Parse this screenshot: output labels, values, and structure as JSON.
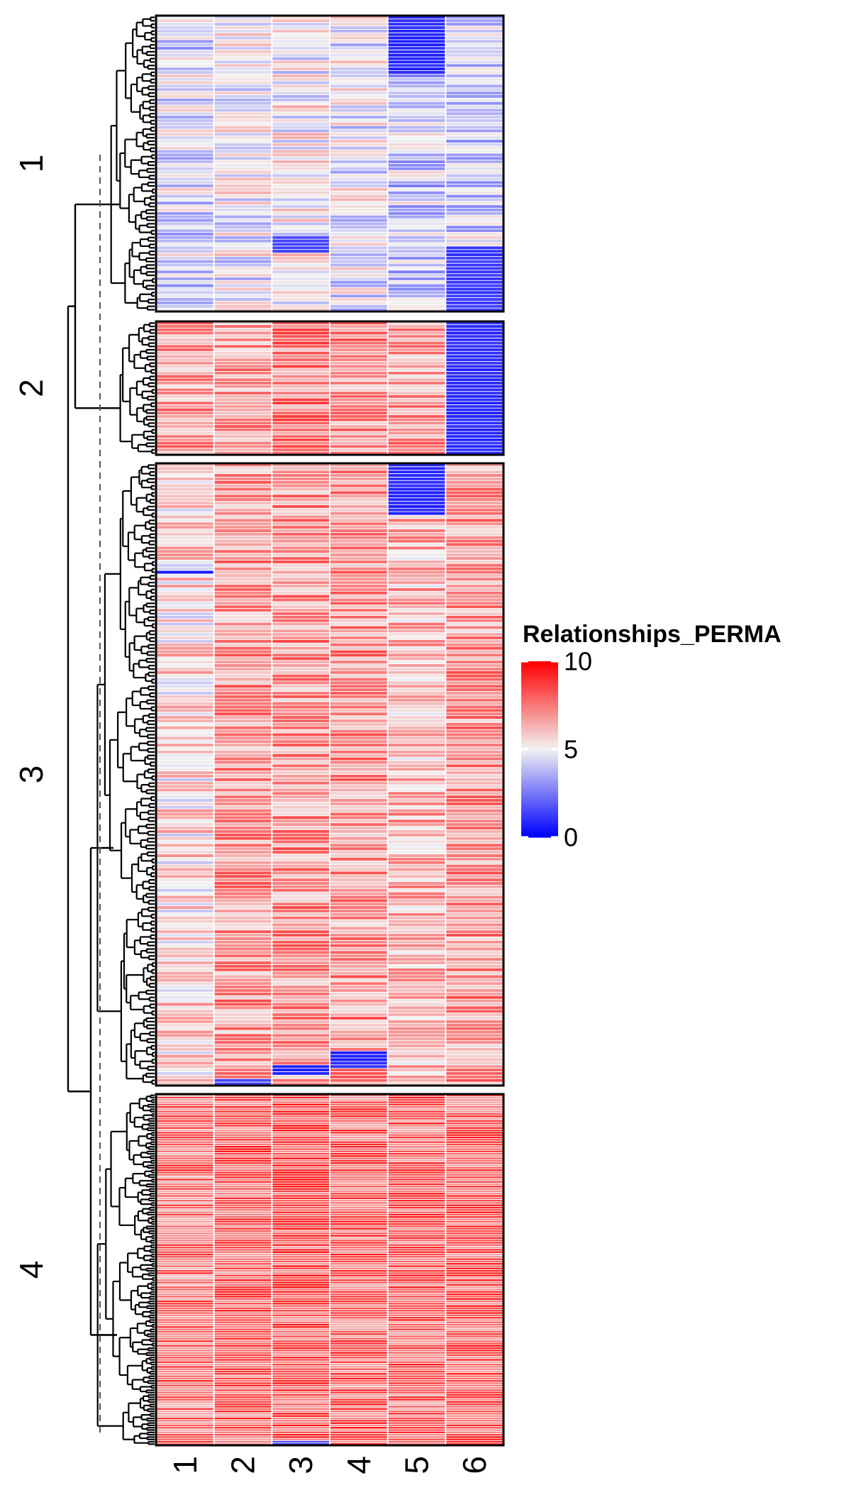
{
  "chart_data": {
    "type": "heatmap",
    "title": "",
    "columns": [
      "1",
      "2",
      "3",
      "4",
      "5",
      "6"
    ],
    "row_clusters": [
      {
        "label": "1",
        "rows": 86,
        "column_means": [
          4.4,
          4.8,
          5.1,
          4.7,
          4.1,
          4.3
        ],
        "low_blocks": [
          {
            "column": "5",
            "row_from": 0.0,
            "row_to": 0.2,
            "value": 0.5
          },
          {
            "column": "6",
            "row_from": 0.78,
            "row_to": 1.0,
            "value": 0.8
          },
          {
            "column": "3",
            "row_from": 0.75,
            "row_to": 0.8,
            "value": 1.0
          },
          {
            "column": "4",
            "row_from": 0.6,
            "row_to": 0.61,
            "value": 0.5
          }
        ]
      },
      {
        "label": "2",
        "rows": 40,
        "column_means": [
          6.8,
          6.9,
          7.4,
          7.1,
          6.8,
          0.6
        ],
        "low_blocks": [
          {
            "column": "6",
            "row_from": 0.0,
            "row_to": 1.0,
            "value": 0.6
          }
        ]
      },
      {
        "label": "3",
        "rows": 180,
        "column_means": [
          5.6,
          6.9,
          7.0,
          6.9,
          6.3,
          6.9
        ],
        "low_blocks": [
          {
            "column": "5",
            "row_from": 0.0,
            "row_to": 0.085,
            "value": 0.5
          },
          {
            "column": "1",
            "row_from": 0.17,
            "row_to": 0.18,
            "value": 0.5
          },
          {
            "column": "3",
            "row_from": 0.965,
            "row_to": 0.985,
            "value": 0.5
          },
          {
            "column": "4",
            "row_from": 0.945,
            "row_to": 0.97,
            "value": 0.5
          },
          {
            "column": "2",
            "row_from": 0.99,
            "row_to": 1.0,
            "value": 1.0
          }
        ]
      },
      {
        "label": "4",
        "rows": 150,
        "column_means": [
          7.6,
          8.0,
          8.2,
          8.0,
          7.9,
          8.0
        ],
        "low_blocks": [
          {
            "column": "3",
            "row_from": 0.99,
            "row_to": 1.0,
            "value": 1.0
          }
        ]
      }
    ],
    "legend": {
      "title": "Relationships_PERMA",
      "ticks": [
        10,
        5,
        0
      ],
      "range": [
        0,
        10
      ],
      "colors": {
        "low": "#0000FF",
        "mid": "#F2F2F2",
        "high": "#FF0000"
      },
      "placement": "right"
    },
    "dendrogram": {
      "side": "left",
      "split_line": "dashed"
    }
  }
}
